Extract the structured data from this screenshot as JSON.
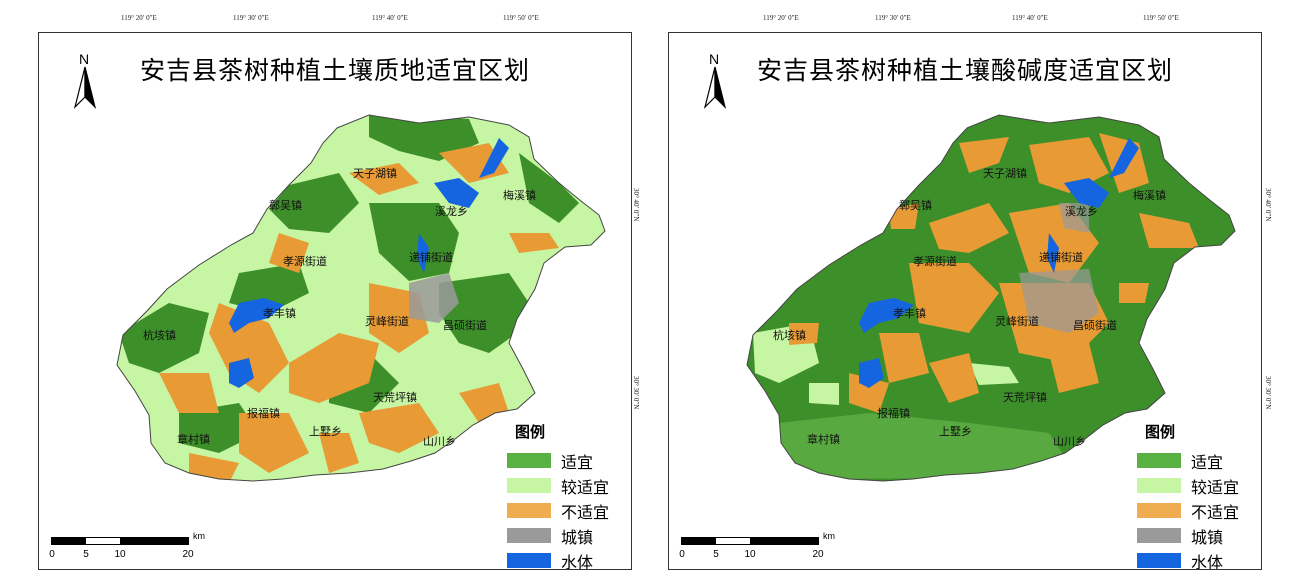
{
  "top_coords": [
    "119° 20′ 0″E",
    "119° 30′ 0″E",
    "119° 40′ 0″E",
    "119° 50′ 0″E"
  ],
  "side_coords": [
    "30° 40′ 0″N",
    "30° 30′ 0″N"
  ],
  "panels": [
    {
      "title": "安吉县茶树种植土壤质地适宜区划",
      "north": "N",
      "legend_title": "图例",
      "places": [
        "天子湖镇",
        "梅溪镇",
        "鄣吴镇",
        "溪龙乡",
        "递铺街道",
        "孝源街道",
        "孝丰镇",
        "灵峰街道",
        "昌硕街道",
        "杭垓镇",
        "天荒坪镇",
        "报福镇",
        "章村镇",
        "上墅乡",
        "山川乡"
      ]
    },
    {
      "title": "安吉县茶树种植土壤酸碱度适宜区划",
      "north": "N",
      "legend_title": "图例",
      "places": [
        "天子湖镇",
        "梅溪镇",
        "鄣吴镇",
        "溪龙乡",
        "递铺街道",
        "孝源街道",
        "孝丰镇",
        "灵峰街道",
        "昌硕街道",
        "杭垓镇",
        "天荒坪镇",
        "报福镇",
        "章村镇",
        "上墅乡",
        "山川乡"
      ]
    }
  ],
  "legend": [
    {
      "label": "适宜",
      "color": "#59b043"
    },
    {
      "label": "较适宜",
      "color": "#c6f5a3"
    },
    {
      "label": "不适宜",
      "color": "#f0ad4f"
    },
    {
      "label": "城镇",
      "color": "#9a9a9a"
    },
    {
      "label": "水体",
      "color": "#1565e0"
    }
  ],
  "scale": {
    "ticks": [
      "0",
      "5",
      "10",
      "20"
    ],
    "unit": "km"
  }
}
